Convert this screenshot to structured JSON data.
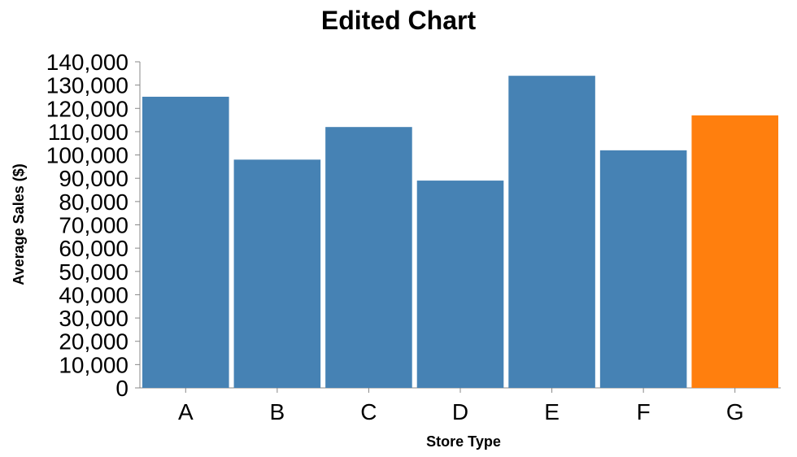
{
  "chart_data": {
    "type": "bar",
    "title": "Edited Chart",
    "xlabel": "Store Type",
    "ylabel": "Average Sales ($)",
    "categories": [
      "A",
      "B",
      "C",
      "D",
      "E",
      "F",
      "G"
    ],
    "values": [
      125000,
      98000,
      112000,
      89000,
      134000,
      102000,
      117000
    ],
    "colors": [
      "#4682b4",
      "#4682b4",
      "#4682b4",
      "#4682b4",
      "#4682b4",
      "#4682b4",
      "#ff7f0e"
    ],
    "ylim": [
      0,
      140000
    ],
    "yticks": [
      0,
      10000,
      20000,
      30000,
      40000,
      50000,
      60000,
      70000,
      80000,
      90000,
      100000,
      110000,
      120000,
      130000,
      140000
    ],
    "ytick_labels": [
      "0",
      "10,000",
      "20,000",
      "30,000",
      "40,000",
      "50,000",
      "60,000",
      "70,000",
      "80,000",
      "90,000",
      "100,000",
      "110,000",
      "120,000",
      "130,000",
      "140,000"
    ],
    "grid": false,
    "legend": "none"
  }
}
